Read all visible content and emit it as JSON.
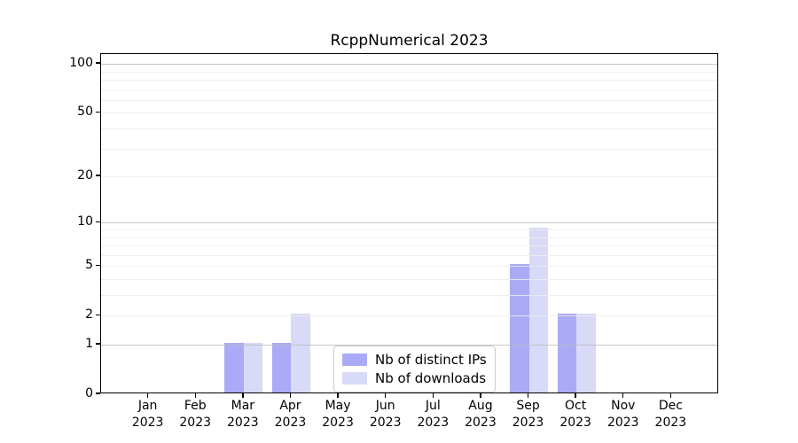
{
  "title": "RcppNumerical 2023",
  "chart_data": {
    "type": "bar",
    "scale": "log1p",
    "title": "RcppNumerical 2023",
    "categories": [
      "Jan",
      "Feb",
      "Mar",
      "Apr",
      "May",
      "Jun",
      "Jul",
      "Aug",
      "Sep",
      "Oct",
      "Nov",
      "Dec"
    ],
    "year_label": "2023",
    "series": [
      {
        "name": "Nb of distinct IPs",
        "color": "#aaaaf6",
        "values": [
          0,
          0,
          1,
          1,
          0,
          0,
          0,
          0,
          5,
          2,
          0,
          0
        ]
      },
      {
        "name": "Nb of downloads",
        "color": "#d9d9f8",
        "values": [
          0,
          0,
          1,
          2,
          0,
          0,
          0,
          0,
          9,
          2,
          0,
          0
        ]
      }
    ],
    "yticks": [
      0,
      1,
      2,
      5,
      10,
      20,
      50,
      100
    ],
    "ylim": [
      0,
      115
    ],
    "grid": "horizontal, minor log lines light, decade lines darker, drawn over bars",
    "legend_position": "inside lower-center-left"
  },
  "colors": {
    "bar_distinct_ips": "#aaaaf6",
    "bar_downloads": "#d9d9f8",
    "grid_major": "#bcbcbc",
    "grid_minor": "#ececec",
    "spine": "#000000",
    "legend_border": "#cccccc",
    "background": "#ffffff"
  }
}
